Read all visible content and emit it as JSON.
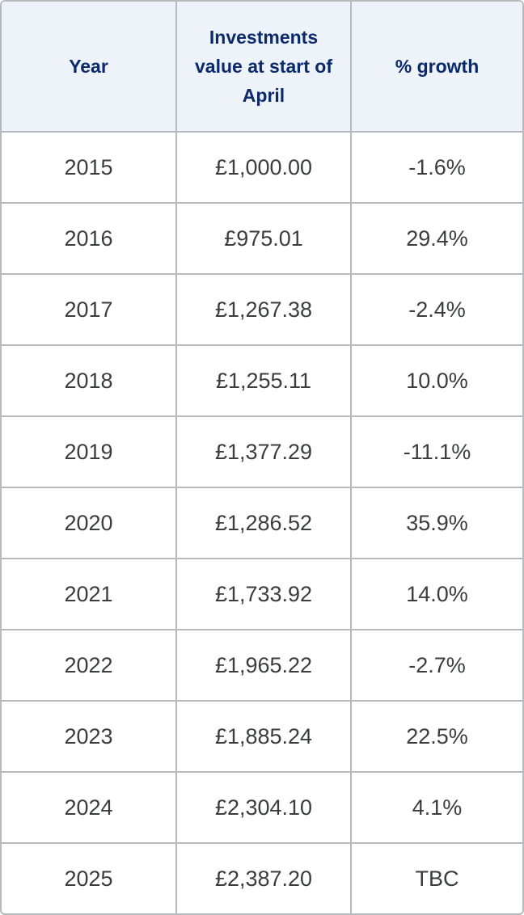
{
  "table": {
    "headers": [
      "Year",
      "Investments value at start of April",
      "% growth"
    ],
    "rows": [
      [
        "2015",
        "£1,000.00",
        "-1.6%"
      ],
      [
        "2016",
        "£975.01",
        "29.4%"
      ],
      [
        "2017",
        "£1,267.38",
        "-2.4%"
      ],
      [
        "2018",
        "£1,255.11",
        "10.0%"
      ],
      [
        "2019",
        "£1,377.29",
        "-11.1%"
      ],
      [
        "2020",
        "£1,286.52",
        "35.9%"
      ],
      [
        "2021",
        "£1,733.92",
        "14.0%"
      ],
      [
        "2022",
        "£1,965.22",
        "-2.7%"
      ],
      [
        "2023",
        "£1,885.24",
        "22.5%"
      ],
      [
        "2024",
        "£2,304.10",
        "4.1%"
      ],
      [
        "2025",
        "£2,387.20",
        "TBC"
      ]
    ]
  },
  "colors": {
    "header_background": "#eef3f9",
    "header_text": "#0b2a6b",
    "cell_text": "#3a3c40",
    "border": "#b7b9bd"
  }
}
